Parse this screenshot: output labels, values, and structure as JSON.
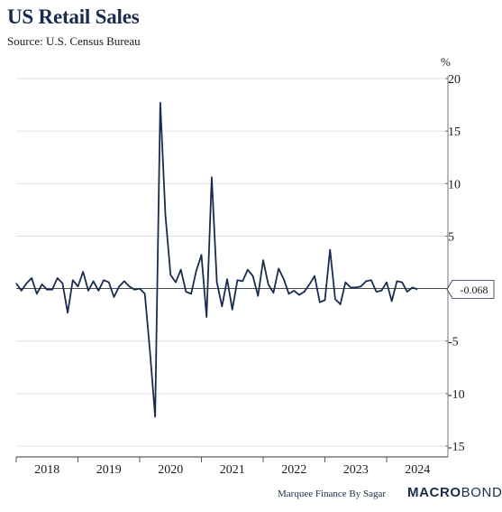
{
  "header": {
    "title": "US Retail Sales",
    "subtitle": "Source: U.S. Census Bureau"
  },
  "footer": {
    "credit": "Marquee Finance By Sagar",
    "brand_bold": "MACRO",
    "brand_rest": "BOND"
  },
  "chart_data": {
    "type": "line",
    "unit_label": "%",
    "ylim": [
      -15.5,
      20
    ],
    "y_ticks": [
      20,
      15,
      10,
      5,
      0,
      -5,
      -10,
      -15
    ],
    "x_tick_labels": [
      "2018",
      "2019",
      "2020",
      "2021",
      "2022",
      "2023",
      "2024"
    ],
    "grid": true,
    "last_value_label": "-0.068",
    "line_color": "#1a2c4e",
    "series": [
      {
        "x": [
          "2018-01",
          "2018-02",
          "2018-03",
          "2018-04",
          "2018-05",
          "2018-06",
          "2018-07",
          "2018-08",
          "2018-09",
          "2018-10",
          "2018-11",
          "2018-12",
          "2019-01",
          "2019-02",
          "2019-03",
          "2019-04",
          "2019-05",
          "2019-06",
          "2019-07",
          "2019-08",
          "2019-09",
          "2019-10",
          "2019-11",
          "2019-12",
          "2020-01",
          "2020-02",
          "2020-03",
          "2020-04",
          "2020-05",
          "2020-06",
          "2020-07",
          "2020-08",
          "2020-09",
          "2020-10",
          "2020-11",
          "2020-12",
          "2021-01",
          "2021-02",
          "2021-03",
          "2021-04",
          "2021-05",
          "2021-06",
          "2021-07",
          "2021-08",
          "2021-09",
          "2021-10",
          "2021-11",
          "2021-12",
          "2022-01",
          "2022-02",
          "2022-03",
          "2022-04",
          "2022-05",
          "2022-06",
          "2022-07",
          "2022-08",
          "2022-09",
          "2022-10",
          "2022-11",
          "2022-12",
          "2023-01",
          "2023-02",
          "2023-03",
          "2023-04",
          "2023-05",
          "2023-06",
          "2023-07",
          "2023-08",
          "2023-09",
          "2023-10",
          "2023-11",
          "2023-12",
          "2024-01",
          "2024-02",
          "2024-03",
          "2024-04",
          "2024-05",
          "2024-06",
          "2024-07"
        ],
        "values": [
          0.5,
          -0.2,
          0.5,
          1.0,
          -0.5,
          0.4,
          -0.1,
          -0.1,
          1.0,
          0.5,
          -2.3,
          0.8,
          0.2,
          1.6,
          -0.2,
          0.7,
          -0.2,
          0.8,
          0.6,
          -0.8,
          0.2,
          0.7,
          0.2,
          -0.1,
          0.0,
          -0.5,
          -6.0,
          -12.2,
          17.7,
          7.0,
          1.3,
          0.6,
          1.8,
          -0.3,
          -0.5,
          1.7,
          3.2,
          -2.7,
          10.6,
          0.6,
          -1.7,
          0.9,
          -2.0,
          0.8,
          0.7,
          1.8,
          1.2,
          -0.7,
          2.7,
          0.4,
          -0.4,
          1.9,
          0.9,
          -0.5,
          -0.2,
          -0.6,
          -0.3,
          0.4,
          1.2,
          -1.3,
          -1.1,
          3.7,
          -1.0,
          -1.5,
          0.6,
          0.1,
          0.1,
          0.2,
          0.7,
          0.8,
          -0.3,
          -0.2,
          0.6,
          -1.2,
          0.7,
          0.6,
          -0.3,
          0.1,
          -0.068
        ]
      }
    ]
  }
}
